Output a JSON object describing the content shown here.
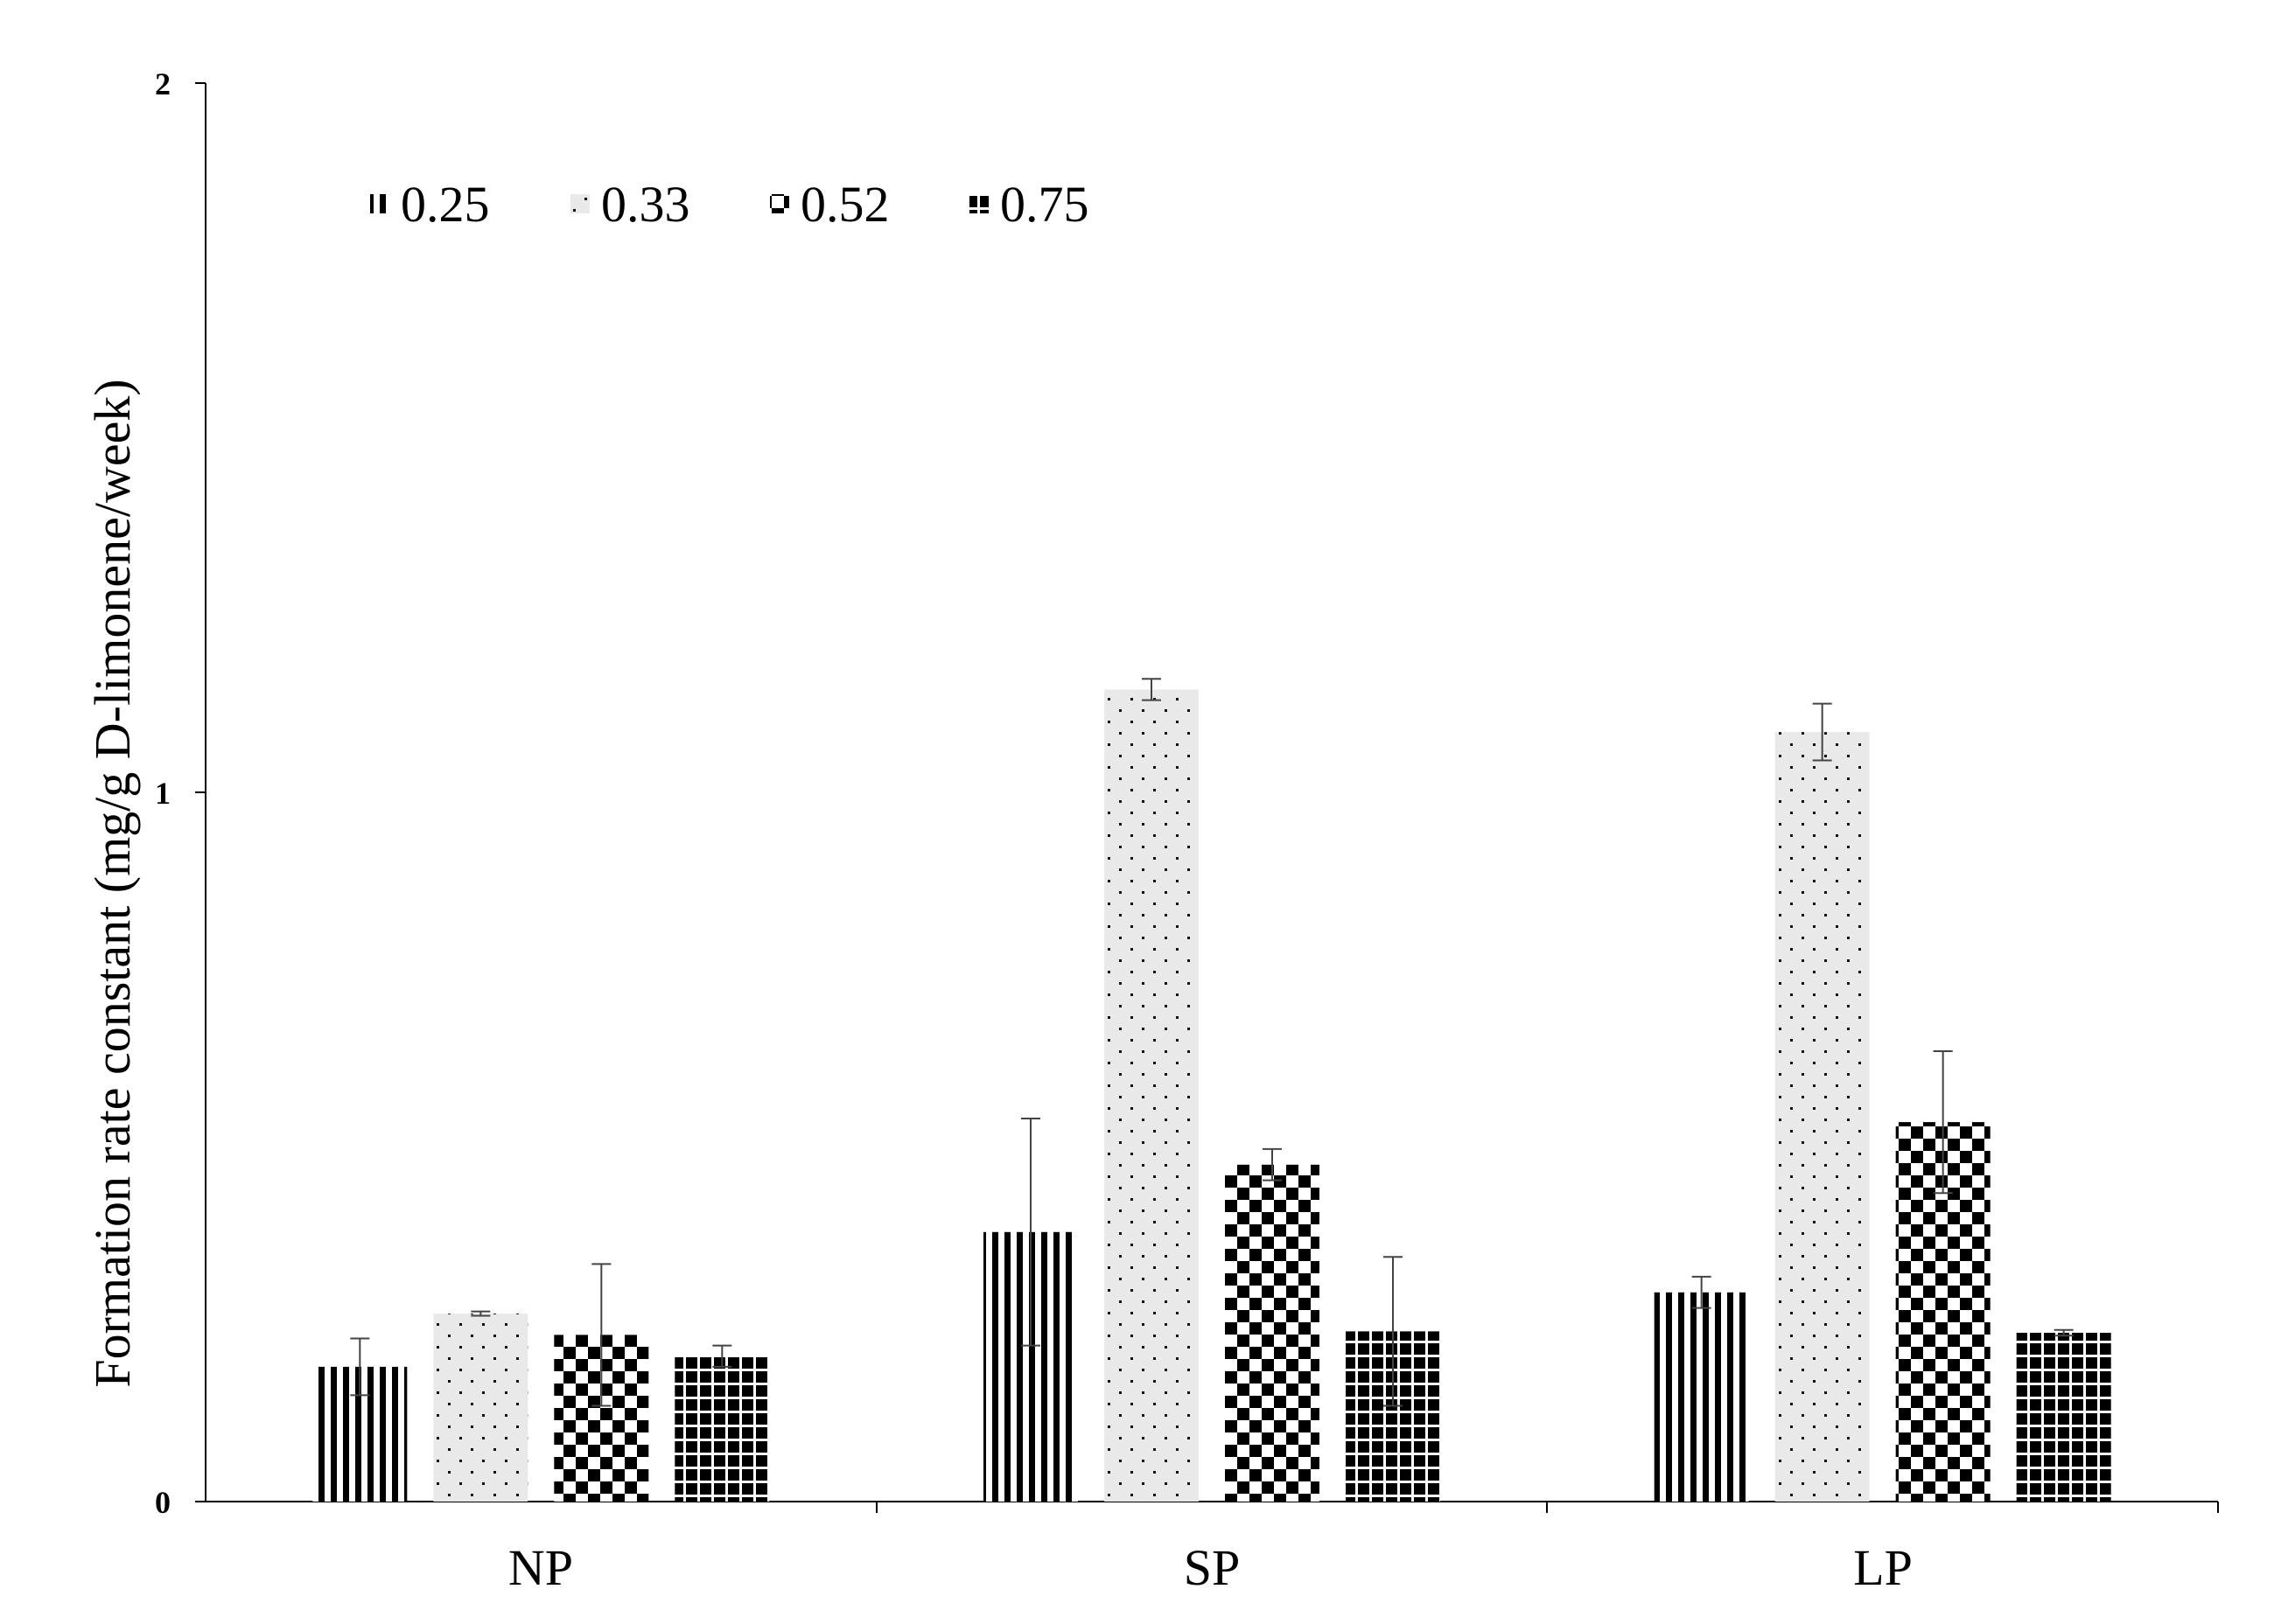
{
  "chart_data": {
    "type": "bar",
    "title": "",
    "xlabel": "",
    "ylabel": "Formation rate constant (mg/g D-limonene/week)",
    "ylim": [
      0,
      2
    ],
    "yticks": [
      "0",
      "1",
      "2"
    ],
    "categories": [
      "NP",
      "SP",
      "LP"
    ],
    "grid": false,
    "legend_position": "top-left",
    "series": [
      {
        "name": "0.25",
        "pattern": "vertical-stripes",
        "values": [
          0.19,
          0.38,
          0.295
        ],
        "errors": [
          0.04,
          0.16,
          0.022
        ]
      },
      {
        "name": "0.33",
        "pattern": "dots",
        "values": [
          0.265,
          1.145,
          1.085
        ],
        "errors": [
          0.003,
          0.015,
          0.04
        ]
      },
      {
        "name": "0.52",
        "pattern": "checkerboard",
        "values": [
          0.235,
          0.475,
          0.535
        ],
        "errors": [
          0.1,
          0.022,
          0.1
        ]
      },
      {
        "name": "0.75",
        "pattern": "grid",
        "values": [
          0.205,
          0.24,
          0.238
        ],
        "errors": [
          0.015,
          0.105,
          0.004
        ]
      }
    ]
  }
}
